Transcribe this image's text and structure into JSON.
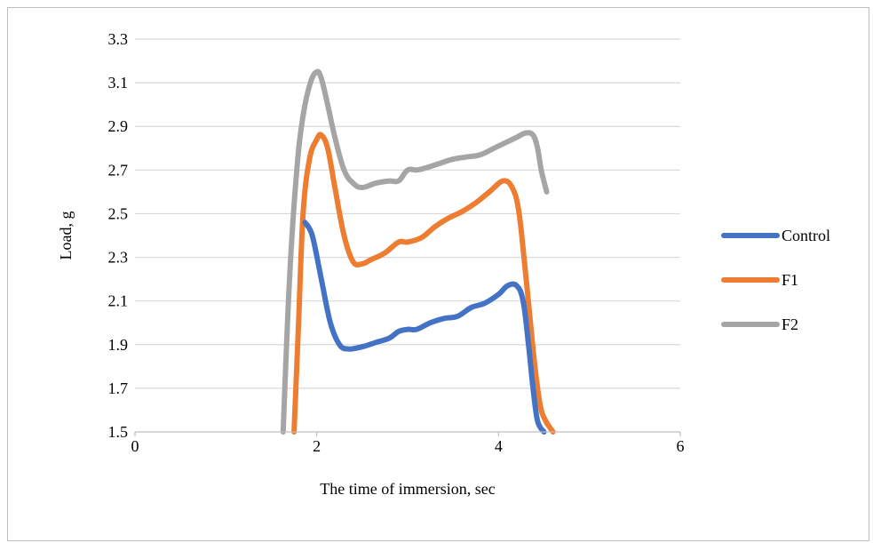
{
  "chart_data": {
    "type": "line",
    "title": "",
    "xlabel": "The time of immersion, sec",
    "ylabel": "Load, g",
    "xlim": [
      0,
      6
    ],
    "ylim": [
      1.5,
      3.3
    ],
    "xticks": [
      0,
      2,
      4,
      6
    ],
    "yticks": [
      1.5,
      1.7,
      1.9,
      2.1,
      2.3,
      2.5,
      2.7,
      2.9,
      3.1,
      3.3
    ],
    "xtick_labels": [
      "0",
      "2",
      "4",
      "6"
    ],
    "ytick_labels": [
      "1.5",
      "1.7",
      "1.9",
      "2.1",
      "2.3",
      "2.5",
      "2.7",
      "2.9",
      "3.1",
      "3.3"
    ],
    "grid": "horizontal",
    "legend_position": "right",
    "series": [
      {
        "name": "Control",
        "color": "#4472c4",
        "x": [
          1.87,
          1.95,
          2.05,
          2.15,
          2.25,
          2.35,
          2.5,
          2.65,
          2.8,
          2.9,
          3.0,
          3.1,
          3.25,
          3.4,
          3.55,
          3.7,
          3.85,
          4.0,
          4.1,
          4.2,
          4.27,
          4.33,
          4.38,
          4.43,
          4.5
        ],
        "values": [
          2.46,
          2.4,
          2.2,
          2.0,
          1.9,
          1.88,
          1.89,
          1.91,
          1.93,
          1.96,
          1.97,
          1.97,
          2.0,
          2.02,
          2.03,
          2.07,
          2.09,
          2.13,
          2.17,
          2.17,
          2.1,
          1.9,
          1.7,
          1.55,
          1.5
        ]
      },
      {
        "name": "F1",
        "color": "#ed7d31",
        "x": [
          1.75,
          1.8,
          1.85,
          1.92,
          2.0,
          2.05,
          2.12,
          2.2,
          2.3,
          2.4,
          2.5,
          2.6,
          2.75,
          2.9,
          3.0,
          3.15,
          3.3,
          3.45,
          3.6,
          3.75,
          3.9,
          4.05,
          4.15,
          4.22,
          4.28,
          4.34,
          4.4,
          4.46,
          4.52,
          4.6
        ],
        "values": [
          1.5,
          2.0,
          2.5,
          2.75,
          2.84,
          2.86,
          2.8,
          2.62,
          2.4,
          2.28,
          2.27,
          2.29,
          2.32,
          2.37,
          2.37,
          2.39,
          2.44,
          2.48,
          2.51,
          2.55,
          2.6,
          2.65,
          2.62,
          2.52,
          2.3,
          2.05,
          1.8,
          1.62,
          1.55,
          1.5
        ]
      },
      {
        "name": "F2",
        "color": "#a5a5a5",
        "x": [
          1.63,
          1.7,
          1.78,
          1.85,
          1.93,
          2.0,
          2.05,
          2.12,
          2.2,
          2.3,
          2.4,
          2.5,
          2.65,
          2.8,
          2.9,
          3.0,
          3.1,
          3.2,
          3.35,
          3.5,
          3.65,
          3.8,
          3.95,
          4.1,
          4.2,
          4.3,
          4.38,
          4.43,
          4.47,
          4.53
        ],
        "values": [
          1.5,
          2.2,
          2.7,
          2.95,
          3.1,
          3.15,
          3.12,
          3.0,
          2.85,
          2.7,
          2.64,
          2.62,
          2.64,
          2.65,
          2.65,
          2.7,
          2.7,
          2.71,
          2.73,
          2.75,
          2.76,
          2.77,
          2.8,
          2.83,
          2.85,
          2.87,
          2.86,
          2.8,
          2.7,
          2.6
        ]
      }
    ]
  }
}
